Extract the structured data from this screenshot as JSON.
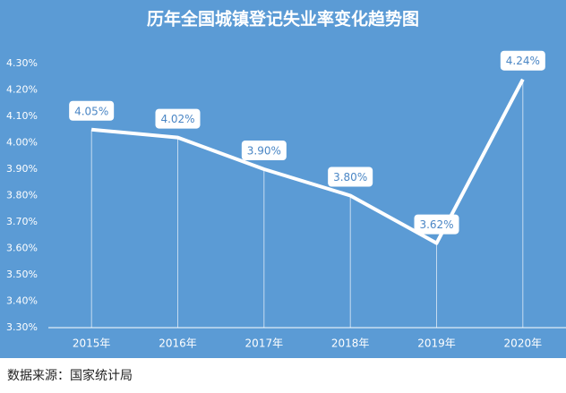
{
  "chart_data": {
    "type": "line",
    "title": "历年全国城镇登记失业率变化趋势图",
    "categories": [
      "2015年",
      "2016年",
      "2017年",
      "2018年",
      "2019年",
      "2020年"
    ],
    "series": [
      {
        "color": "#ffffff",
        "values": [
          4.05,
          4.02,
          3.9,
          3.8,
          3.62,
          4.24
        ],
        "value_labels": [
          "4.05%",
          "4.02%",
          "3.90%",
          "3.80%",
          "3.62%",
          "4.24%"
        ]
      }
    ],
    "ylim": [
      3.3,
      4.3
    ],
    "yticks": [
      {
        "value": 3.3,
        "label": "3.30%"
      },
      {
        "value": 3.4,
        "label": "3.40%"
      },
      {
        "value": 3.5,
        "label": "3.50%"
      },
      {
        "value": 3.6,
        "label": "3.60%"
      },
      {
        "value": 3.7,
        "label": "3.70%"
      },
      {
        "value": 3.8,
        "label": "3.80%"
      },
      {
        "value": 3.9,
        "label": "3.90%"
      },
      {
        "value": 4.0,
        "label": "4.00%"
      },
      {
        "value": 4.1,
        "label": "4.10%"
      },
      {
        "value": 4.2,
        "label": "4.20%"
      },
      {
        "value": 4.3,
        "label": "4.30%"
      }
    ],
    "grid": false,
    "source": "数据来源：国家统计局"
  }
}
